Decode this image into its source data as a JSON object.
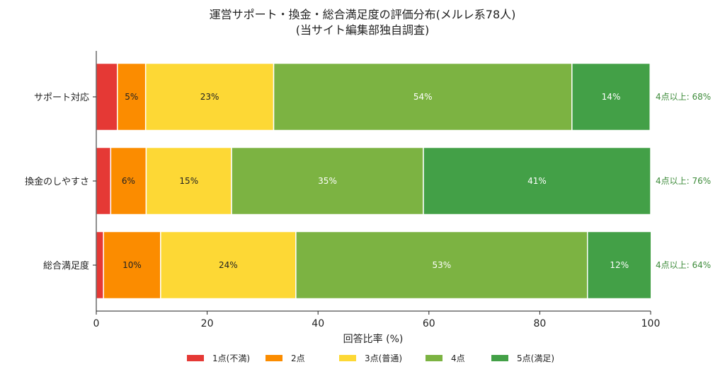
{
  "chart_data": {
    "type": "bar",
    "orientation": "horizontal",
    "stacked": true,
    "title_line1": "運営サポート・換金・総合満足度の評価分布(メルレ系78人)",
    "title_line2": "(当サイト編集部独自調査)",
    "xlabel": "回答比率 (%)",
    "ylabel": "",
    "xlim": [
      0,
      100
    ],
    "x_ticks": [
      "0",
      "20",
      "40",
      "60",
      "80",
      "100"
    ],
    "grid": false,
    "legend_position": "bottom-center",
    "categories": [
      "サポート対応",
      "換金のしやすさ",
      "総合満足度"
    ],
    "series": [
      {
        "name": "1点(不満)",
        "color": "#e53935",
        "values": [
          3.8,
          2.6,
          1.3
        ],
        "labels": [
          "",
          "",
          ""
        ]
      },
      {
        "name": "2点",
        "color": "#fb8c00",
        "values": [
          5.1,
          6.4,
          10.3
        ],
        "labels": [
          "5%",
          "6%",
          "10%"
        ]
      },
      {
        "name": "3点(普通)",
        "color": "#fdd835",
        "values": [
          23.1,
          15.4,
          24.4
        ],
        "labels": [
          "23%",
          "15%",
          "24%"
        ]
      },
      {
        "name": "4点",
        "color": "#7cb342",
        "values": [
          53.8,
          34.6,
          52.6
        ],
        "labels": [
          "54%",
          "35%",
          "53%"
        ]
      },
      {
        "name": "5点(満足)",
        "color": "#43a047",
        "values": [
          14.1,
          41.0,
          11.5
        ],
        "labels": [
          "14%",
          "41%",
          "12%"
        ]
      }
    ],
    "annotations": [
      "4点以上: 68%",
      "4点以上: 76%",
      "4点以上: 64%"
    ]
  }
}
